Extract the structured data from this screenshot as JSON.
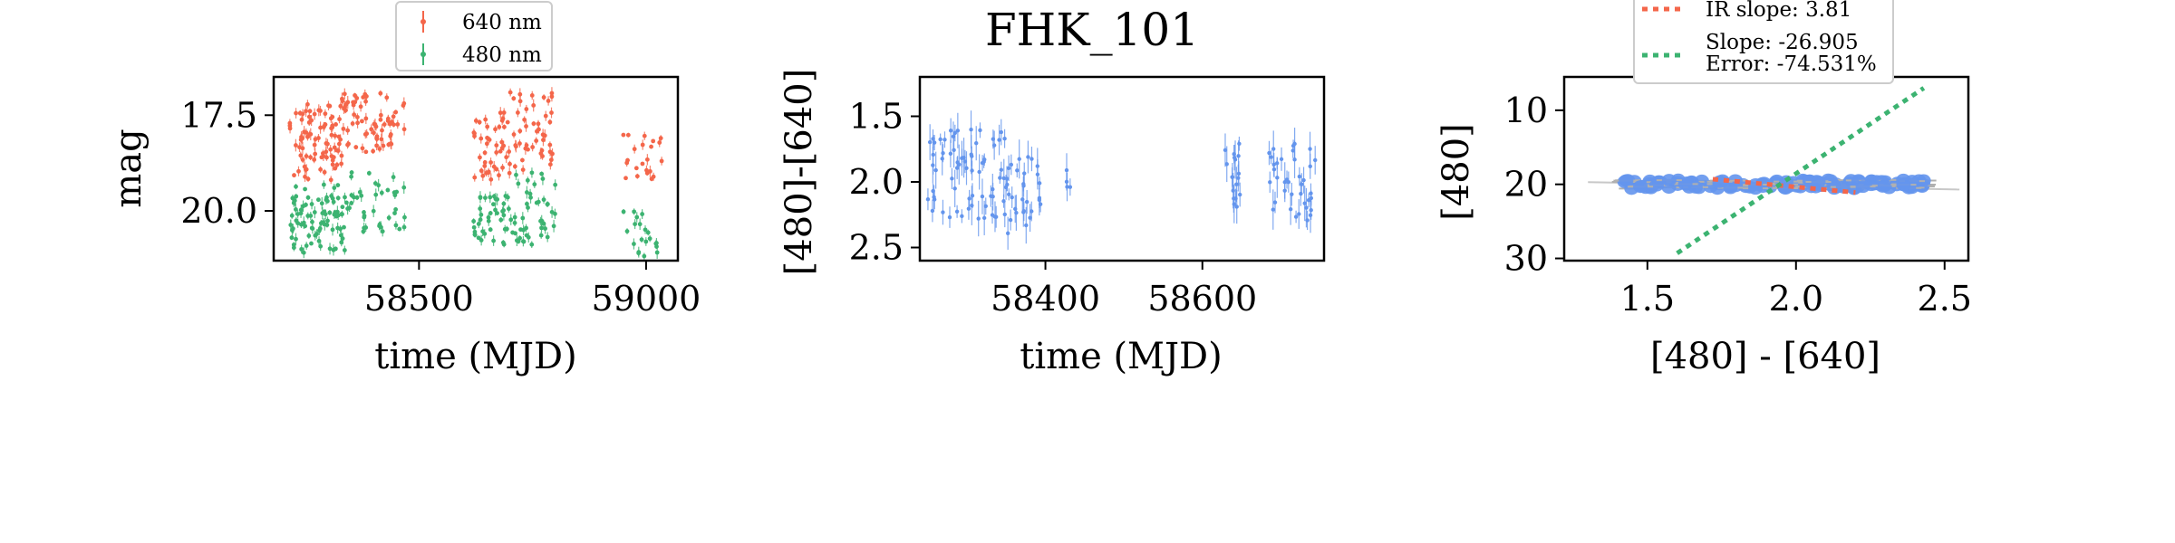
{
  "colors": {
    "red": "#f4664a",
    "green": "#3cb371",
    "blue": "#6495ed",
    "orange": "#f4664a",
    "green_line": "#3cb371",
    "grey_line": "#c8c8c8",
    "frame": "#000000"
  },
  "chart_data": [
    {
      "type": "scatter",
      "id": "lightcurve",
      "title": "",
      "xlabel": "time (MJD)",
      "ylabel": "mag",
      "xlim": [
        58180,
        59070
      ],
      "ylim": [
        21.3,
        16.5
      ],
      "xticks": [
        58500,
        59000
      ],
      "xtick_labels": [
        "58500",
        "59000"
      ],
      "yticks": [
        17.5,
        20.0
      ],
      "ytick_labels": [
        "17.5",
        "20.0"
      ],
      "legend": {
        "position": "above",
        "entries": [
          "640 nm",
          "480 nm"
        ]
      },
      "series": [
        {
          "name": "640 nm",
          "color_key": "red",
          "segments": [
            {
              "x0": 58215,
              "x1": 58330,
              "n": 85,
              "ymin": 17.2,
              "ymax": 19.2
            },
            {
              "x0": 58330,
              "x1": 58440,
              "n": 60,
              "ymin": 16.9,
              "ymax": 18.6
            },
            {
              "x0": 58440,
              "x1": 58470,
              "n": 8,
              "ymin": 17.0,
              "ymax": 17.9
            },
            {
              "x0": 58620,
              "x1": 58700,
              "n": 45,
              "ymin": 17.4,
              "ymax": 19.2
            },
            {
              "x0": 58700,
              "x1": 58800,
              "n": 45,
              "ymin": 16.9,
              "ymax": 19.0
            },
            {
              "x0": 58950,
              "x1": 59040,
              "n": 22,
              "ymin": 18.0,
              "ymax": 19.3
            }
          ]
        },
        {
          "name": "480 nm",
          "color_key": "green",
          "segments": [
            {
              "x0": 58215,
              "x1": 58340,
              "n": 85,
              "ymin": 19.3,
              "ymax": 21.1
            },
            {
              "x0": 58340,
              "x1": 58475,
              "n": 40,
              "ymin": 18.9,
              "ymax": 20.6
            },
            {
              "x0": 58620,
              "x1": 58700,
              "n": 40,
              "ymin": 19.6,
              "ymax": 20.9
            },
            {
              "x0": 58700,
              "x1": 58800,
              "n": 45,
              "ymin": 19.0,
              "ymax": 20.9
            },
            {
              "x0": 58950,
              "x1": 59040,
              "n": 20,
              "ymin": 20.0,
              "ymax": 21.2
            }
          ]
        }
      ]
    },
    {
      "type": "scatter",
      "id": "color_curve",
      "title": "FHK_101",
      "xlabel": "time (MJD)",
      "ylabel": "[480]-[640]",
      "xlim": [
        58240,
        58755
      ],
      "ylim": [
        2.6,
        1.2
      ],
      "xticks": [
        58400,
        58600
      ],
      "xtick_labels": [
        "58400",
        "58600"
      ],
      "yticks": [
        1.5,
        2.0,
        2.5
      ],
      "ytick_labels": [
        "1.5",
        "2.0",
        "2.5"
      ],
      "series": [
        {
          "name": "[480]-[640]",
          "color_key": "blue",
          "segments": [
            {
              "x0": 58250,
              "x1": 58300,
              "n": 35,
              "ymin": 1.6,
              "ymax": 2.3
            },
            {
              "x0": 58300,
              "x1": 58350,
              "n": 35,
              "ymin": 1.6,
              "ymax": 2.3
            },
            {
              "x0": 58350,
              "x1": 58395,
              "n": 30,
              "ymin": 1.8,
              "ymax": 2.4
            },
            {
              "x0": 58425,
              "x1": 58432,
              "n": 4,
              "ymin": 1.85,
              "ymax": 2.05
            },
            {
              "x0": 58628,
              "x1": 58650,
              "n": 18,
              "ymin": 1.7,
              "ymax": 2.2
            },
            {
              "x0": 58685,
              "x1": 58745,
              "n": 38,
              "ymin": 1.7,
              "ymax": 2.3
            }
          ]
        }
      ]
    },
    {
      "type": "scatter",
      "id": "color_magnitude",
      "title": "",
      "xlabel": "[480] - [640]",
      "ylabel": "[480]",
      "xlim": [
        1.22,
        2.58
      ],
      "ylim": [
        30.3,
        5.5
      ],
      "xticks": [
        1.5,
        2.0,
        2.5
      ],
      "xtick_labels": [
        "1.5",
        "2.0",
        "2.5"
      ],
      "yticks": [
        10,
        20,
        30
      ],
      "ytick_labels": [
        "10",
        "20",
        "30"
      ],
      "points": {
        "color_key": "blue",
        "n": 130,
        "x0": 1.42,
        "x1": 2.43,
        "yc": 20.0,
        "yspread": 0.6
      },
      "fit_lines": [
        {
          "label": "IR slope: 3.81",
          "color_key": "orange",
          "x": [
            1.72,
            2.2
          ],
          "y": [
            19.3,
            21.1
          ]
        },
        {
          "label": "Slope: -26.905\nError: -74.531%",
          "color_key": "green_line",
          "x": [
            1.6,
            2.43
          ],
          "y": [
            29.3,
            7.0
          ]
        },
        {
          "label": "",
          "color_key": "grey_line",
          "x": [
            1.3,
            2.55
          ],
          "y": [
            19.7,
            20.7
          ]
        }
      ],
      "legend": {
        "position": "above",
        "entries": [
          "IR slope: 3.81",
          "Slope: -26.905",
          "Error: -74.531%"
        ]
      }
    }
  ]
}
